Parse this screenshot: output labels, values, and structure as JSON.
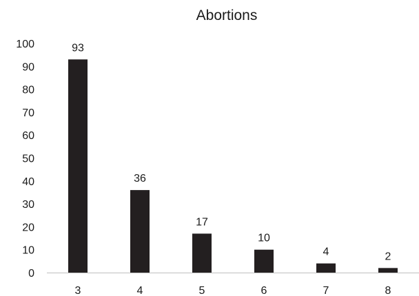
{
  "chart_data": {
    "type": "bar",
    "title": "Abortions",
    "xlabel": "",
    "ylabel": "",
    "categories": [
      "3",
      "4",
      "5",
      "6",
      "7",
      "8"
    ],
    "values": [
      93,
      36,
      17,
      10,
      4,
      2
    ],
    "data_labels": [
      "93",
      "36",
      "17",
      "10",
      "4",
      "2"
    ],
    "ylim": [
      0,
      100
    ],
    "yticks": [
      0,
      10,
      20,
      30,
      40,
      50,
      60,
      70,
      80,
      90,
      100
    ],
    "grid": false,
    "legend": "none",
    "bar_color": "#231f20",
    "axis_color": "#bfbfbf",
    "text_color": "#1a1a1a"
  }
}
